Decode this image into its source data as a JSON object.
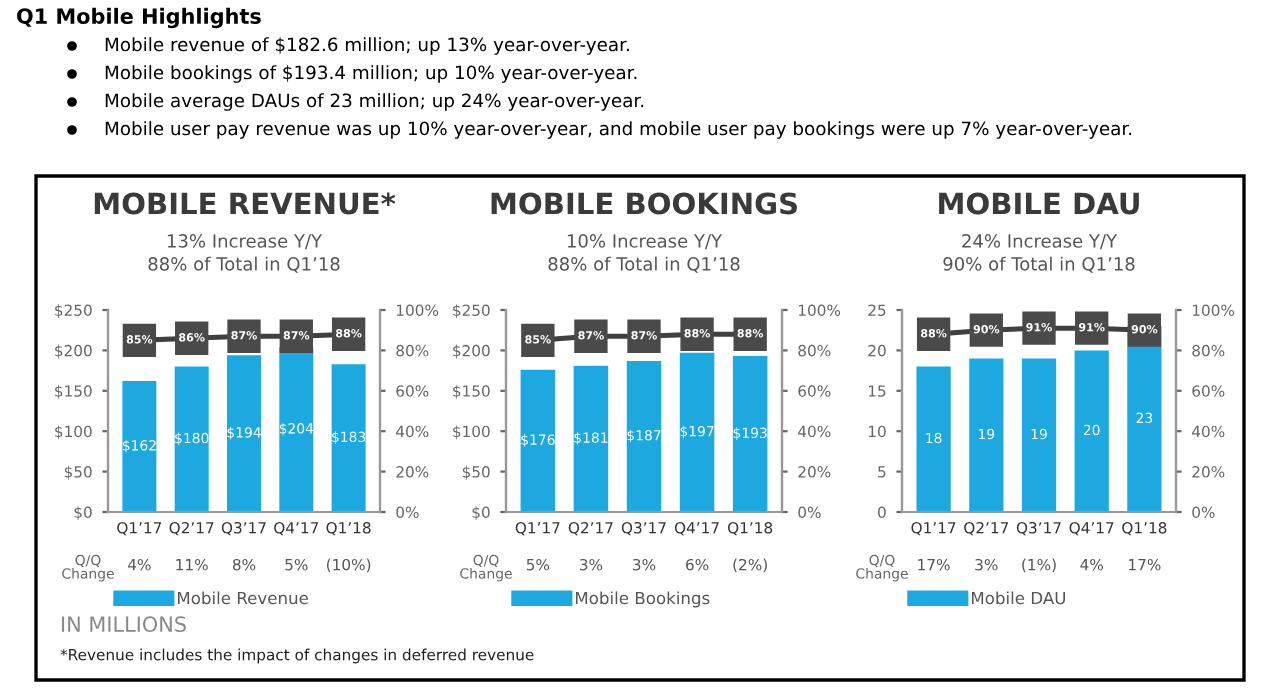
{
  "chart_data": [
    {
      "type": "bar",
      "title": "MOBILE REVENUE*",
      "subtitle": "13% Increase Y/Y\n88% of Total in Q1’18",
      "categories": [
        "Q1’17",
        "Q2’17",
        "Q3’17",
        "Q4’17",
        "Q1’18"
      ],
      "series": [
        {
          "name": "Mobile Revenue",
          "color": "#1ea8e0",
          "values": [
            162,
            180,
            194,
            204,
            183
          ],
          "value_labels": [
            "$162",
            "$180",
            "$194",
            "$204",
            "$183"
          ]
        },
        {
          "type": "line",
          "axis": "y2",
          "color": "#404040",
          "values": [
            85,
            86,
            87,
            87,
            88
          ],
          "value_labels": [
            "85%",
            "86%",
            "87%",
            "87%",
            "88%"
          ]
        }
      ],
      "ylim": [
        0,
        250
      ],
      "yticks": [
        {
          "value": 0,
          "label": "$0"
        },
        {
          "value": 50,
          "label": "$50"
        },
        {
          "value": 100,
          "label": "$100"
        },
        {
          "value": 150,
          "label": "$150"
        },
        {
          "value": 200,
          "label": "$200"
        },
        {
          "value": 250,
          "label": "$250"
        }
      ],
      "y2lim": [
        0,
        100
      ],
      "y2ticks": [
        {
          "value": 0,
          "label": "0%"
        },
        {
          "value": 20,
          "label": "20%"
        },
        {
          "value": 40,
          "label": "40%"
        },
        {
          "value": 60,
          "label": "60%"
        },
        {
          "value": 80,
          "label": "80%"
        },
        {
          "value": 100,
          "label": "100%"
        }
      ],
      "legend": "bottom",
      "marker": "square",
      "annotations": [
        "Q/Q\nChange",
        "Q1 Mobile Highlights",
        "Mobile revenue of $182.6 million; up 13% year-over-year.",
        "Mobile bookings of $193.4 million; up 10% year-over-year.",
        "Mobile average DAUs of 23 million; up 24% year-over-year.",
        "Mobile user pay revenue was up 10% year-over-year, and mobile user pay bookings were up 7% year-over-year.",
        "IN MILLIONS",
        "*Revenue includes the impact of changes in deferred revenue",
        "4%",
        "11%",
        "8%",
        "5%",
        "(10%)"
      ]
    },
    {
      "type": "bar",
      "title": "MOBILE BOOKINGS",
      "subtitle": "10% Increase Y/Y\n88% of Total in Q1’18",
      "categories": [
        "Q1’17",
        "Q2’17",
        "Q3’17",
        "Q4’17",
        "Q1’18"
      ],
      "series": [
        {
          "name": "Mobile Bookings",
          "color": "#1ea8e0",
          "values": [
            176,
            181,
            187,
            197,
            193
          ],
          "value_labels": [
            "$176",
            "$181",
            "$187",
            "$197",
            "$193"
          ]
        },
        {
          "type": "line",
          "axis": "y2",
          "color": "#404040",
          "values": [
            85,
            87,
            87,
            88,
            88
          ],
          "value_labels": [
            "85%",
            "87%",
            "87%",
            "88%",
            "88%"
          ]
        }
      ],
      "ylim": [
        0,
        250
      ],
      "yticks": [
        {
          "value": 0,
          "label": "$0"
        },
        {
          "value": 50,
          "label": "$50"
        },
        {
          "value": 100,
          "label": "$100"
        },
        {
          "value": 150,
          "label": "$150"
        },
        {
          "value": 200,
          "label": "$200"
        },
        {
          "value": 250,
          "label": "$250"
        }
      ],
      "y2lim": [
        0,
        100
      ],
      "y2ticks": [
        {
          "value": 0,
          "label": "0%"
        },
        {
          "value": 20,
          "label": "20%"
        },
        {
          "value": 40,
          "label": "40%"
        },
        {
          "value": 60,
          "label": "60%"
        },
        {
          "value": 80,
          "label": "80%"
        },
        {
          "value": 100,
          "label": "100%"
        }
      ],
      "legend": "bottom",
      "marker": "square",
      "annotations": [
        "Q/Q\nChange",
        "5%",
        "3%",
        "3%",
        "6%",
        "(2%)"
      ]
    },
    {
      "type": "bar",
      "title": "MOBILE DAU",
      "subtitle": "24% Increase Y/Y\n90% of Total in Q1’18",
      "categories": [
        "Q1’17",
        "Q2’17",
        "Q3’17",
        "Q4’17",
        "Q1’18"
      ],
      "series": [
        {
          "name": "Mobile DAU",
          "color": "#1ea8e0",
          "values": [
            18,
            19,
            19,
            20,
            23
          ],
          "value_labels": [
            "18",
            "19",
            "19",
            "20",
            "23"
          ]
        },
        {
          "type": "line",
          "axis": "y2",
          "color": "#404040",
          "values": [
            88,
            90,
            91,
            91,
            90
          ],
          "value_labels": [
            "88%",
            "90%",
            "91%",
            "91%",
            "90%"
          ]
        }
      ],
      "ylim": [
        0,
        25
      ],
      "yticks": [
        0,
        5,
        10,
        15,
        20,
        25
      ],
      "y2lim": [
        0,
        100
      ],
      "y2ticks": [
        {
          "value": 0,
          "label": "0%"
        },
        {
          "value": 20,
          "label": "20%"
        },
        {
          "value": 40,
          "label": "40%"
        },
        {
          "value": 60,
          "label": "60%"
        },
        {
          "value": 80,
          "label": "80%"
        },
        {
          "value": 100,
          "label": "100%"
        }
      ],
      "legend": "bottom",
      "marker": "square",
      "annotations": [
        "Q/Q\nChange",
        "17%",
        "3%",
        "(1%)",
        "4%",
        "17%"
      ]
    }
  ]
}
